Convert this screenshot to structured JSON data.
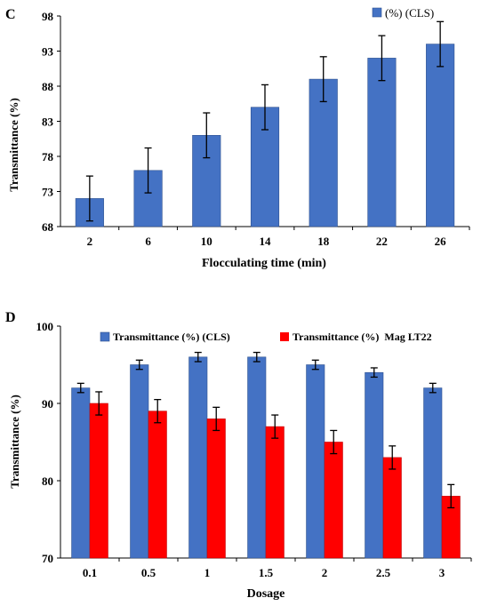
{
  "colors": {
    "blue": "#4472C4",
    "red": "#FF0000",
    "axis": "#000000",
    "err": "#000000"
  },
  "chart_data": [
    {
      "panel": "C",
      "type": "bar",
      "xlabel": "Flocculating time (min)",
      "ylabel": "Transmittance (%)",
      "ylim": [
        68,
        98
      ],
      "yticks": [
        68,
        73,
        78,
        83,
        88,
        93,
        98
      ],
      "categories": [
        "2",
        "6",
        "10",
        "14",
        "18",
        "22",
        "26"
      ],
      "legend": "top-right",
      "grid": false,
      "series": [
        {
          "name": "(%) (CLS)",
          "color": "#4472C4",
          "values": [
            72,
            76,
            81,
            85,
            89,
            92,
            94
          ],
          "errors": [
            3.2,
            3.2,
            3.2,
            3.2,
            3.2,
            3.2,
            3.2
          ]
        }
      ]
    },
    {
      "panel": "D",
      "type": "bar",
      "xlabel": "Dosage",
      "ylabel": "Transmittance (%)",
      "ylim": [
        70,
        100
      ],
      "yticks": [
        70,
        80,
        90,
        100
      ],
      "categories": [
        "0.1",
        "0.5",
        "1",
        "1.5",
        "2",
        "2.5",
        "3"
      ],
      "legend": "top",
      "grid": false,
      "series": [
        {
          "name": "Transmittance (%) (CLS)",
          "color": "#4472C4",
          "values": [
            92,
            95,
            96,
            96,
            95,
            94,
            92
          ],
          "errors": [
            0.6,
            0.6,
            0.6,
            0.6,
            0.6,
            0.6,
            0.6
          ]
        },
        {
          "name": "Transmittance (%)  Mag LT22",
          "color": "#FF0000",
          "values": [
            90,
            89,
            88,
            87,
            85,
            83,
            78
          ],
          "errors": [
            1.5,
            1.5,
            1.5,
            1.5,
            1.5,
            1.5,
            1.5
          ]
        }
      ]
    }
  ]
}
